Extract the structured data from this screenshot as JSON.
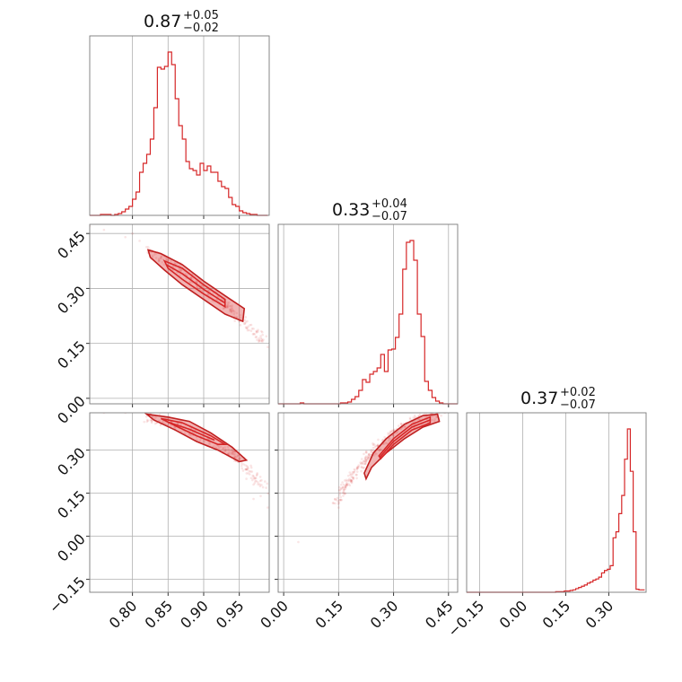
{
  "chart_data": {
    "type": "corner",
    "color": "#d62728",
    "parameters": [
      {
        "id": "p0",
        "title": {
          "value": "0.87",
          "plus": "+0.05",
          "minus": "−0.02"
        },
        "range": [
          0.74,
          0.992
        ],
        "ticks": [
          "0.80",
          "0.85",
          "0.90",
          "0.95"
        ]
      },
      {
        "id": "p1",
        "title": {
          "value": "0.33",
          "plus": "+0.04",
          "minus": "−0.07"
        },
        "range": [
          -0.015,
          0.475
        ],
        "ticks": [
          "0.00",
          "0.15",
          "0.30",
          "0.45"
        ]
      },
      {
        "id": "p2",
        "title": {
          "value": "0.37",
          "plus": "+0.02",
          "minus": "−0.07"
        },
        "range": [
          -0.195,
          0.43
        ],
        "ticks": [
          "−0.15",
          "0.00",
          "0.15",
          "0.30"
        ]
      }
    ],
    "histograms": [
      {
        "param": "p0",
        "bins": [
          0.74,
          0.745,
          0.75,
          0.755,
          0.76,
          0.765,
          0.77,
          0.775,
          0.78,
          0.785,
          0.79,
          0.795,
          0.8,
          0.805,
          0.81,
          0.815,
          0.82,
          0.825,
          0.83,
          0.835,
          0.84,
          0.845,
          0.85,
          0.855,
          0.86,
          0.865,
          0.87,
          0.875,
          0.88,
          0.885,
          0.89,
          0.895,
          0.9,
          0.905,
          0.91,
          0.915,
          0.92,
          0.925,
          0.93,
          0.935,
          0.94,
          0.945,
          0.95,
          0.955,
          0.96,
          0.965,
          0.97,
          0.975,
          0.98,
          0.985,
          0.99
        ],
        "counts": [
          0,
          0,
          0,
          1,
          1,
          1,
          0,
          1,
          2,
          4,
          7,
          10,
          18,
          26,
          48,
          58,
          68,
          85,
          120,
          165,
          163,
          166,
          182,
          168,
          130,
          100,
          85,
          60,
          52,
          50,
          45,
          58,
          50,
          55,
          48,
          48,
          38,
          32,
          30,
          20,
          12,
          10,
          5,
          3,
          2,
          1,
          1,
          0,
          0,
          0
        ]
      },
      {
        "param": "p1",
        "bins": [
          -0.015,
          -0.005,
          0.005,
          0.015,
          0.025,
          0.035,
          0.045,
          0.055,
          0.065,
          0.075,
          0.085,
          0.095,
          0.105,
          0.115,
          0.125,
          0.135,
          0.145,
          0.155,
          0.165,
          0.175,
          0.185,
          0.195,
          0.205,
          0.215,
          0.225,
          0.235,
          0.245,
          0.255,
          0.265,
          0.275,
          0.285,
          0.295,
          0.305,
          0.315,
          0.325,
          0.335,
          0.345,
          0.355,
          0.365,
          0.375,
          0.385,
          0.395,
          0.405,
          0.415,
          0.425,
          0.435,
          0.445,
          0.455,
          0.465,
          0.475
        ],
        "counts": [
          0,
          0,
          0,
          0,
          0,
          0,
          1,
          0,
          0,
          0,
          0,
          0,
          0,
          0,
          0,
          0,
          0,
          1,
          1,
          2,
          5,
          8,
          15,
          27,
          24,
          33,
          36,
          40,
          55,
          36,
          60,
          61,
          74,
          100,
          150,
          180,
          182,
          160,
          100,
          75,
          25,
          15,
          7,
          3,
          1,
          0,
          0,
          0,
          0
        ]
      },
      {
        "param": "p2",
        "bins": [
          -0.195,
          -0.185,
          -0.175,
          -0.165,
          -0.155,
          -0.145,
          -0.135,
          -0.125,
          -0.115,
          -0.105,
          -0.095,
          -0.085,
          -0.075,
          -0.065,
          -0.055,
          -0.045,
          -0.035,
          -0.025,
          -0.015,
          -0.005,
          0.005,
          0.015,
          0.025,
          0.035,
          0.045,
          0.055,
          0.065,
          0.075,
          0.085,
          0.095,
          0.105,
          0.115,
          0.125,
          0.135,
          0.145,
          0.155,
          0.165,
          0.175,
          0.185,
          0.195,
          0.205,
          0.215,
          0.225,
          0.235,
          0.245,
          0.255,
          0.265,
          0.275,
          0.285,
          0.295,
          0.305,
          0.315,
          0.325,
          0.335,
          0.345,
          0.355,
          0.365,
          0.375,
          0.385,
          0.395,
          0.405,
          0.415,
          0.425
        ],
        "counts": [
          0,
          0,
          0,
          0,
          0,
          0,
          0,
          0,
          0,
          0,
          0,
          0,
          0,
          0,
          0,
          0,
          0,
          0,
          0,
          0,
          0,
          0,
          0,
          0,
          0,
          0,
          0,
          0,
          0,
          0,
          0,
          1,
          1,
          1,
          2,
          2,
          3,
          4,
          6,
          8,
          10,
          12,
          15,
          17,
          20,
          22,
          25,
          32,
          36,
          38,
          44,
          90,
          100,
          130,
          160,
          220,
          270,
          200,
          100,
          5,
          4,
          4
        ]
      }
    ],
    "joint_2d": [
      {
        "x": "p0",
        "y": "p1",
        "trend": [
          [
            0.82,
            0.4
          ],
          [
            0.85,
            0.37
          ],
          [
            0.875,
            0.345
          ],
          [
            0.9,
            0.3
          ],
          [
            0.93,
            0.255
          ],
          [
            0.955,
            0.21
          ],
          [
            0.985,
            0.16
          ]
        ],
        "scatter": [
          [
            0.74,
            0.47
          ],
          [
            0.76,
            0.46
          ],
          [
            0.79,
            0.44
          ],
          [
            0.8,
            0.45
          ],
          [
            0.81,
            0.43
          ],
          [
            0.97,
            0.19
          ],
          [
            0.98,
            0.17
          ],
          [
            0.99,
            0.14
          ],
          [
            0.965,
            0.2
          ],
          [
            0.975,
            0.16
          ]
        ],
        "contours": [
          {
            "level": 0.39,
            "points": [
              [
                0.822,
                0.405
              ],
              [
                0.84,
                0.395
              ],
              [
                0.87,
                0.365
              ],
              [
                0.9,
                0.32
              ],
              [
                0.93,
                0.28
              ],
              [
                0.957,
                0.245
              ],
              [
                0.955,
                0.21
              ],
              [
                0.93,
                0.23
              ],
              [
                0.9,
                0.27
              ],
              [
                0.87,
                0.31
              ],
              [
                0.845,
                0.35
              ],
              [
                0.825,
                0.385
              ]
            ]
          },
          {
            "level": 0.86,
            "points": [
              [
                0.845,
                0.375
              ],
              [
                0.87,
                0.355
              ],
              [
                0.9,
                0.31
              ],
              [
                0.93,
                0.27
              ],
              [
                0.93,
                0.25
              ],
              [
                0.9,
                0.285
              ],
              [
                0.87,
                0.325
              ],
              [
                0.85,
                0.355
              ]
            ]
          }
        ]
      },
      {
        "x": "p0",
        "y": "p2",
        "trend": [
          [
            0.82,
            0.415
          ],
          [
            0.85,
            0.4
          ],
          [
            0.88,
            0.37
          ],
          [
            0.91,
            0.33
          ],
          [
            0.94,
            0.29
          ],
          [
            0.96,
            0.24
          ],
          [
            0.99,
            0.16
          ]
        ],
        "scatter": [
          [
            0.74,
            0.44
          ],
          [
            0.76,
            0.43
          ],
          [
            0.79,
            0.43
          ],
          [
            0.96,
            0.2
          ],
          [
            0.97,
            0.18
          ],
          [
            0.98,
            0.14
          ],
          [
            0.99,
            0.1
          ],
          [
            0.97,
            0.13
          ]
        ],
        "contours": [
          {
            "level": 0.39,
            "points": [
              [
                0.82,
                0.425
              ],
              [
                0.85,
                0.415
              ],
              [
                0.88,
                0.4
              ],
              [
                0.91,
                0.36
              ],
              [
                0.94,
                0.31
              ],
              [
                0.96,
                0.265
              ],
              [
                0.95,
                0.26
              ],
              [
                0.92,
                0.3
              ],
              [
                0.89,
                0.33
              ],
              [
                0.86,
                0.37
              ],
              [
                0.83,
                0.405
              ]
            ]
          },
          {
            "level": 0.86,
            "points": [
              [
                0.84,
                0.41
              ],
              [
                0.87,
                0.395
              ],
              [
                0.91,
                0.35
              ],
              [
                0.93,
                0.32
              ],
              [
                0.92,
                0.32
              ],
              [
                0.89,
                0.35
              ],
              [
                0.86,
                0.385
              ]
            ]
          }
        ]
      },
      {
        "x": "p1",
        "y": "p2",
        "trend": [
          [
            0.14,
            0.11
          ],
          [
            0.17,
            0.18
          ],
          [
            0.2,
            0.23
          ],
          [
            0.23,
            0.28
          ],
          [
            0.27,
            0.33
          ],
          [
            0.32,
            0.38
          ],
          [
            0.37,
            0.405
          ],
          [
            0.42,
            0.42
          ]
        ],
        "scatter": [
          [
            0.04,
            -0.02
          ],
          [
            0.15,
            0.1
          ],
          [
            0.14,
            0.13
          ],
          [
            0.18,
            0.2
          ],
          [
            0.43,
            0.42
          ],
          [
            0.44,
            0.43
          ],
          [
            0.41,
            0.44
          ]
        ],
        "contours": [
          {
            "level": 0.39,
            "points": [
              [
                0.22,
                0.22
              ],
              [
                0.245,
                0.29
              ],
              [
                0.28,
                0.34
              ],
              [
                0.33,
                0.39
              ],
              [
                0.38,
                0.42
              ],
              [
                0.42,
                0.425
              ],
              [
                0.425,
                0.4
              ],
              [
                0.38,
                0.38
              ],
              [
                0.33,
                0.34
              ],
              [
                0.28,
                0.29
              ],
              [
                0.24,
                0.24
              ],
              [
                0.225,
                0.2
              ]
            ]
          },
          {
            "level": 0.86,
            "points": [
              [
                0.26,
                0.28
              ],
              [
                0.3,
                0.34
              ],
              [
                0.35,
                0.39
              ],
              [
                0.4,
                0.415
              ],
              [
                0.4,
                0.395
              ],
              [
                0.35,
                0.37
              ],
              [
                0.3,
                0.32
              ],
              [
                0.265,
                0.27
              ]
            ]
          }
        ]
      }
    ]
  }
}
